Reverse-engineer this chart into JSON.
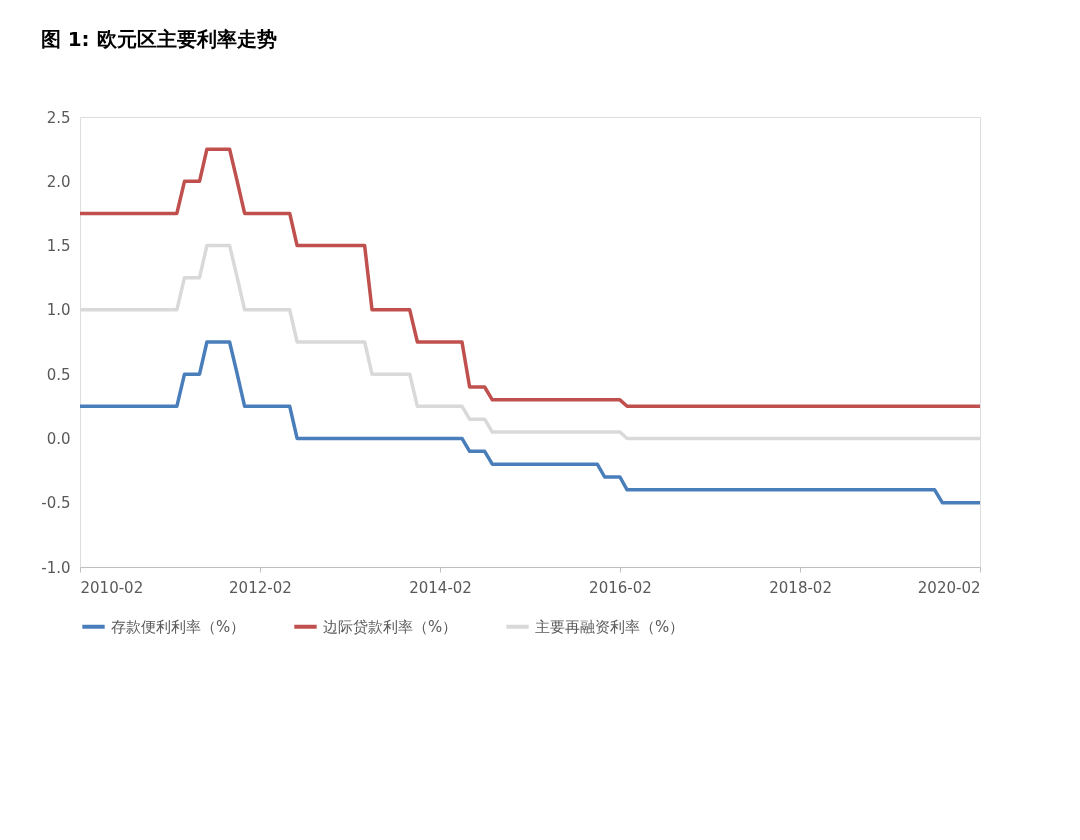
{
  "chart_data": {
    "type": "line",
    "title": "图 1: 欧元区主要利率走势",
    "x": [
      "2010-02",
      "2011-03",
      "2011-04",
      "2011-06",
      "2011-07",
      "2011-10",
      "2011-11",
      "2011-12",
      "2012-06",
      "2012-07",
      "2013-04",
      "2013-05",
      "2013-10",
      "2013-11",
      "2014-05",
      "2014-06",
      "2014-08",
      "2014-09",
      "2015-11",
      "2015-12",
      "2016-02",
      "2016-03",
      "2019-08",
      "2019-09",
      "2020-02"
    ],
    "series": [
      {
        "name": "存款便利利率（%）",
        "color": "#4a7ebb",
        "values": [
          0.25,
          0.25,
          0.5,
          0.5,
          0.75,
          0.75,
          0.5,
          0.25,
          0.25,
          0,
          0,
          0,
          0,
          0,
          0,
          -0.1,
          -0.1,
          -0.2,
          -0.2,
          -0.3,
          -0.3,
          -0.4,
          -0.4,
          -0.5,
          -0.5
        ]
      },
      {
        "name": "边际贷款利率（%）",
        "color": "#c0504d",
        "values": [
          1.75,
          1.75,
          2,
          2,
          2.25,
          2.25,
          2,
          1.75,
          1.75,
          1.5,
          1.5,
          1,
          1,
          0.75,
          0.75,
          0.4,
          0.4,
          0.3,
          0.3,
          0.3,
          0.3,
          0.25,
          0.25,
          0.25,
          0.25
        ]
      },
      {
        "name": "主要再融资利率（%）",
        "color": "#d9d9d9",
        "values": [
          1,
          1,
          1.25,
          1.25,
          1.5,
          1.5,
          1.25,
          1,
          1,
          0.75,
          0.75,
          0.5,
          0.5,
          0.25,
          0.25,
          0.15,
          0.15,
          0.05,
          0.05,
          0.05,
          0.05,
          0,
          0,
          0,
          0
        ]
      }
    ],
    "xlim": [
      "2010-02",
      "2020-02"
    ],
    "xticks": [
      "2010-02",
      "2012-02",
      "2014-02",
      "2016-02",
      "2018-02",
      "2020-02"
    ],
    "ylim": [
      -1.0,
      2.5
    ],
    "yticks": [
      {
        "value": -1.0,
        "label": "-1.0"
      },
      {
        "value": -0.5,
        "label": "-0.5"
      },
      {
        "value": 0,
        "label": "0.0"
      },
      {
        "value": 0.5,
        "label": "0.5"
      },
      {
        "value": 1.0,
        "label": "1.0"
      },
      {
        "value": 1.5,
        "label": "1.5"
      },
      {
        "value": 2.0,
        "label": "2.0"
      },
      {
        "value": 2.5,
        "label": "2.5"
      }
    ],
    "grid": false,
    "legend": "bottom",
    "marker": "none",
    "line_style": "solid"
  }
}
